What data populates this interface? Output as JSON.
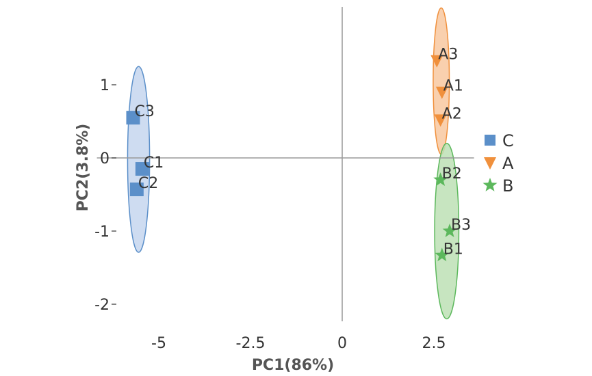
{
  "chart_data": {
    "type": "scatter",
    "title": "",
    "xlabel": "PC1(86%)",
    "ylabel": "PC2(3.8%)",
    "xlim": [
      -6.5,
      3.5
    ],
    "ylim": [
      -2.3,
      2.1
    ],
    "xticks": [
      -5,
      -2.5,
      0,
      2.5
    ],
    "xtick_labels": [
      "-5",
      "-2.5",
      "0",
      "2.5"
    ],
    "yticks": [
      1,
      0,
      -1,
      -2
    ],
    "ytick_labels": [
      "1",
      "0",
      "-1",
      "-2"
    ],
    "grid": false,
    "legend_position": "right",
    "series": [
      {
        "name": "C",
        "marker": "square",
        "color": "#5b8fc9",
        "fill": "#c5d6ee",
        "points": [
          {
            "label": "C3",
            "x": -5.7,
            "y": 0.55
          },
          {
            "label": "C1",
            "x": -5.45,
            "y": -0.15
          },
          {
            "label": "C2",
            "x": -5.6,
            "y": -0.43
          }
        ],
        "ellipse": {
          "cx": -5.55,
          "cy": -0.02,
          "rx": 0.3,
          "ry": 1.27
        }
      },
      {
        "name": "A",
        "marker": "triangle-down",
        "color": "#f0903c",
        "fill": "#f8c8a0",
        "points": [
          {
            "label": "A3",
            "x": 2.58,
            "y": 1.33
          },
          {
            "label": "A1",
            "x": 2.72,
            "y": 0.9
          },
          {
            "label": "A2",
            "x": 2.68,
            "y": 0.52
          }
        ],
        "ellipse": {
          "cx": 2.7,
          "cy": 1.05,
          "rx": 0.22,
          "ry": 1.0
        }
      },
      {
        "name": "B",
        "marker": "star",
        "color": "#5cb85c",
        "fill": "#bde0b5",
        "points": [
          {
            "label": "B2",
            "x": 2.68,
            "y": -0.3
          },
          {
            "label": "B3",
            "x": 2.93,
            "y": -1.0
          },
          {
            "label": "B1",
            "x": 2.72,
            "y": -1.33
          }
        ],
        "ellipse": {
          "cx": 2.85,
          "cy": -1.0,
          "rx": 0.33,
          "ry": 1.2
        }
      }
    ]
  }
}
